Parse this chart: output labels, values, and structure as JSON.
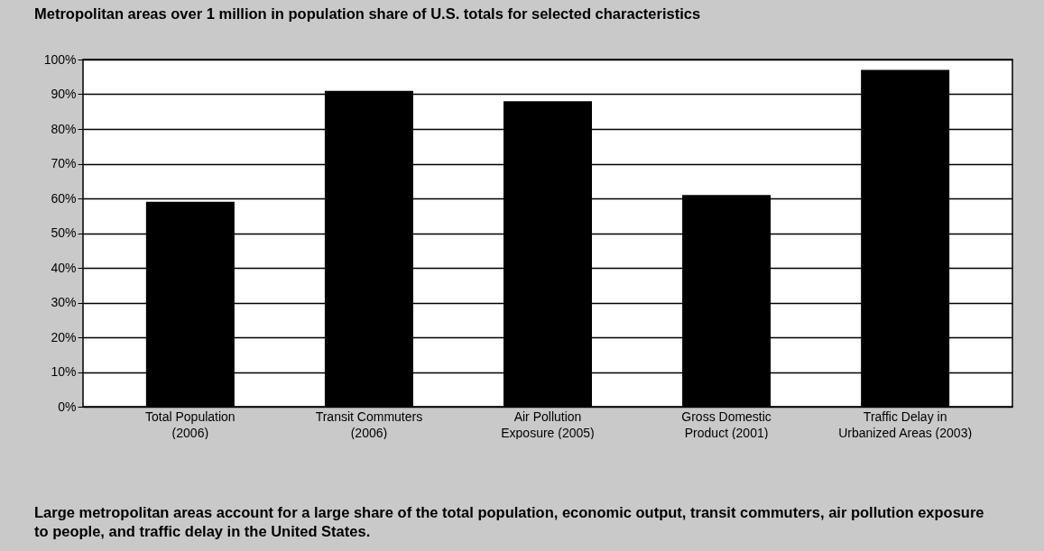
{
  "chart_data": {
    "type": "bar",
    "title": "Metropolitan areas over 1 million in population share of U.S. totals for selected characteristics",
    "categories": [
      "Total Population\n(2006)",
      "Transit Commuters\n(2006)",
      "Air Pollution\nExposure (2005)",
      "Gross Domestic\nProduct (2001)",
      "Traffic Delay in\nUrbanized Areas (2003)"
    ],
    "values": [
      59,
      91,
      88,
      61,
      97
    ],
    "color": "#000000",
    "ylim": [
      0,
      100
    ],
    "yticks": [
      {
        "value": 0,
        "label": "0%"
      },
      {
        "value": 10,
        "label": "10%"
      },
      {
        "value": 20,
        "label": "20%"
      },
      {
        "value": 30,
        "label": "30%"
      },
      {
        "value": 40,
        "label": "40%"
      },
      {
        "value": 50,
        "label": "50%"
      },
      {
        "value": 60,
        "label": "60%"
      },
      {
        "value": 70,
        "label": "70%"
      },
      {
        "value": 80,
        "label": "80%"
      },
      {
        "value": 90,
        "label": "90%"
      },
      {
        "value": 100,
        "label": "100%"
      }
    ],
    "grid": "y",
    "annotations": [
      "Large metropolitan areas account for a large share of the total population, economic output, transit commuters, air pollution exposure to people, and traffic delay in the United States."
    ]
  }
}
